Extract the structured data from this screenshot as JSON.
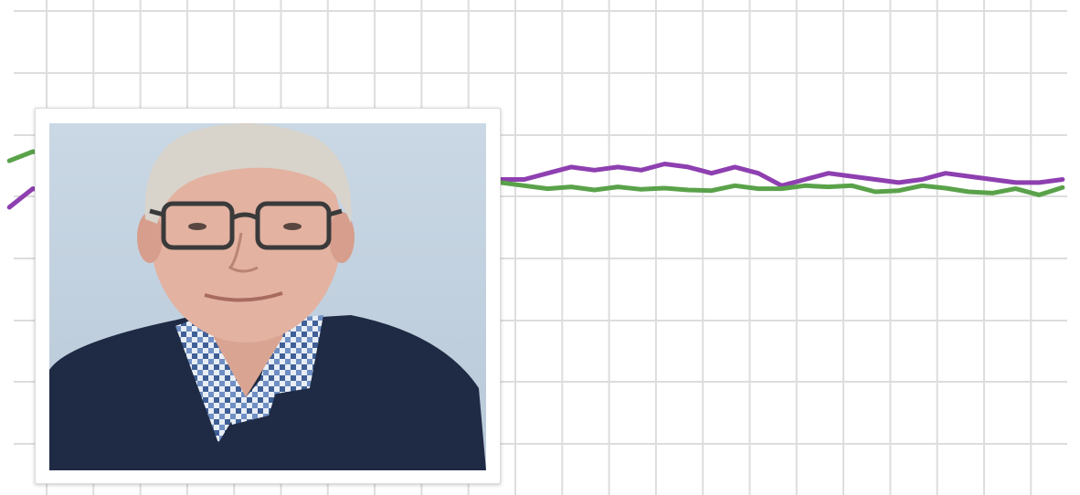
{
  "colors": {
    "background": "#ffffff",
    "grid": "#dddddd",
    "series_1": "#8e3fb0",
    "series_2": "#5aa24a",
    "photo_backdrop": "#c6d4e1",
    "sweater": "#1f2a44",
    "shirt_check": "#4a6fa5",
    "hair": "#d8d4cc",
    "skin": "#e3b2a1",
    "glasses": "#3a3a3a"
  },
  "icons": {
    "portrait": "portrait-photo"
  },
  "chart_data": {
    "type": "line",
    "title": "",
    "xlabel": "",
    "ylabel": "",
    "grid": true,
    "legend": "none",
    "x": [
      1,
      2,
      3,
      4,
      5,
      6,
      7,
      8,
      9,
      10,
      11,
      12,
      13,
      14,
      15,
      16,
      17,
      18,
      18.5,
      19,
      20,
      21,
      22,
      23,
      24,
      25,
      26,
      27,
      28,
      29,
      30,
      31,
      32,
      33,
      34,
      35,
      36,
      37,
      38,
      39,
      40,
      41,
      42,
      43,
      44,
      45,
      46
    ],
    "xlim": [
      0.6,
      46.2
    ],
    "ylim": [
      0,
      8
    ],
    "series": [
      {
        "color": "#8e3fb0",
        "values": [
          4.65,
          4.95,
          4.9,
          5.0,
          5.05,
          5.1,
          5.1,
          5.05,
          5.15,
          5.1,
          5.2,
          5.15,
          5.25,
          5.2,
          5.3,
          5.2,
          5.1,
          5.3,
          5.5,
          5.15,
          5.1,
          5.05,
          5.1,
          5.1,
          5.2,
          5.3,
          5.25,
          5.3,
          5.25,
          5.35,
          5.3,
          5.2,
          5.3,
          5.2,
          5.0,
          5.1,
          5.2,
          5.15,
          5.1,
          5.05,
          5.1,
          5.2,
          5.15,
          5.1,
          5.05,
          5.05,
          5.1
        ]
      },
      {
        "color": "#5aa24a",
        "values": [
          5.4,
          5.55,
          5.5,
          5.45,
          5.5,
          5.4,
          5.45,
          5.5,
          5.4,
          5.35,
          5.45,
          5.4,
          5.3,
          5.35,
          5.3,
          5.2,
          5.15,
          5.1,
          5.05,
          5.05,
          4.95,
          5.0,
          5.05,
          5.0,
          4.95,
          4.98,
          4.93,
          4.98,
          4.94,
          4.96,
          4.93,
          4.92,
          5.0,
          4.95,
          4.95,
          5.0,
          4.98,
          5.0,
          4.9,
          4.92,
          5.0,
          4.96,
          4.9,
          4.88,
          4.95,
          4.85,
          4.97
        ]
      }
    ]
  }
}
